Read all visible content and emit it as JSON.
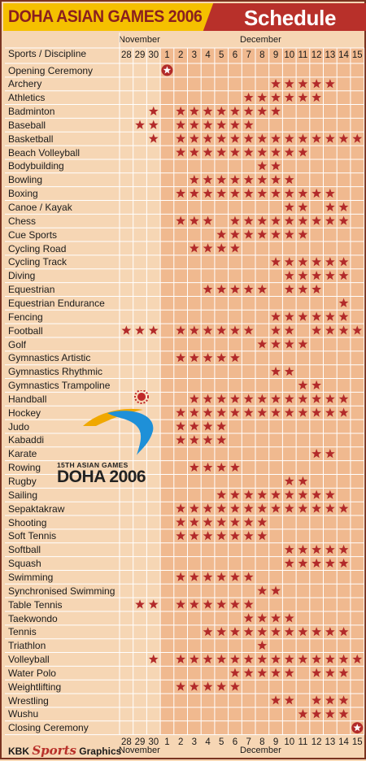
{
  "header": {
    "title_left": "DOHA ASIAN GAMES 2006",
    "title_right": "Schedule"
  },
  "table": {
    "corner_label": "Sports / Discipline",
    "month_november": "November",
    "month_december": "December",
    "days": [
      "28",
      "29",
      "30",
      "1",
      "2",
      "3",
      "4",
      "5",
      "6",
      "7",
      "8",
      "9",
      "10",
      "11",
      "12",
      "13",
      "14",
      "15"
    ],
    "rows": [
      {
        "sport": "Opening Ceremony",
        "events": [
          "1"
        ],
        "circled": [
          "1"
        ]
      },
      {
        "sport": "Archery",
        "events": [
          "9",
          "10",
          "11",
          "12",
          "13"
        ]
      },
      {
        "sport": "Athletics",
        "events": [
          "7",
          "8",
          "9",
          "10",
          "11",
          "12"
        ]
      },
      {
        "sport": "Badminton",
        "events": [
          "30",
          "2",
          "3",
          "4",
          "5",
          "6",
          "7",
          "8",
          "9"
        ]
      },
      {
        "sport": "Baseball",
        "events": [
          "29",
          "30",
          "2",
          "3",
          "4",
          "5",
          "6",
          "7"
        ]
      },
      {
        "sport": "Basketball",
        "events": [
          "30",
          "2",
          "3",
          "4",
          "5",
          "6",
          "7",
          "8",
          "9",
          "10",
          "11",
          "12",
          "13",
          "14",
          "15"
        ]
      },
      {
        "sport": "Beach Volleyball",
        "events": [
          "2",
          "3",
          "4",
          "5",
          "6",
          "7",
          "8",
          "9",
          "10",
          "11"
        ]
      },
      {
        "sport": "Bodybuilding",
        "events": [
          "8",
          "9"
        ]
      },
      {
        "sport": "Bowling",
        "events": [
          "3",
          "4",
          "5",
          "6",
          "7",
          "8",
          "9",
          "10"
        ]
      },
      {
        "sport": "Boxing",
        "events": [
          "2",
          "3",
          "4",
          "5",
          "6",
          "7",
          "8",
          "9",
          "10",
          "11",
          "12",
          "13"
        ]
      },
      {
        "sport": "Canoe / Kayak",
        "events": [
          "10",
          "11",
          "13",
          "14"
        ]
      },
      {
        "sport": "Chess",
        "events": [
          "2",
          "3",
          "4",
          "6",
          "7",
          "8",
          "9",
          "10",
          "11",
          "12",
          "13",
          "14"
        ]
      },
      {
        "sport": "Cue Sports",
        "events": [
          "5",
          "6",
          "7",
          "8",
          "9",
          "10",
          "11"
        ]
      },
      {
        "sport": "Cycling Road",
        "events": [
          "3",
          "4",
          "5",
          "6"
        ]
      },
      {
        "sport": "Cycling Track",
        "events": [
          "9",
          "10",
          "11",
          "12",
          "13",
          "14"
        ]
      },
      {
        "sport": "Diving",
        "events": [
          "10",
          "11",
          "12",
          "13",
          "14"
        ]
      },
      {
        "sport": "Equestrian",
        "events": [
          "4",
          "5",
          "6",
          "7",
          "8",
          "10",
          "11",
          "12"
        ]
      },
      {
        "sport": "Equestrian Endurance",
        "events": [
          "14"
        ]
      },
      {
        "sport": "Fencing",
        "events": [
          "9",
          "10",
          "11",
          "12",
          "13",
          "14"
        ]
      },
      {
        "sport": "Football",
        "events": [
          "28",
          "29",
          "30",
          "2",
          "3",
          "4",
          "5",
          "6",
          "7",
          "9",
          "10",
          "12",
          "13",
          "14",
          "15"
        ]
      },
      {
        "sport": "Golf",
        "events": [
          "8",
          "9",
          "10",
          "11"
        ]
      },
      {
        "sport": "Gymnastics Artistic",
        "events": [
          "2",
          "3",
          "4",
          "5",
          "6"
        ]
      },
      {
        "sport": "Gymnastics Rhythmic",
        "events": [
          "9",
          "10"
        ]
      },
      {
        "sport": "Gymnastics Trampoline",
        "events": [
          "11",
          "12"
        ]
      },
      {
        "sport": "Handball",
        "events": [
          "3",
          "4",
          "5",
          "6",
          "7",
          "8",
          "9",
          "10",
          "11",
          "12",
          "13",
          "14"
        ]
      },
      {
        "sport": "Hockey",
        "events": [
          "2",
          "3",
          "4",
          "5",
          "6",
          "7",
          "8",
          "9",
          "10",
          "11",
          "12",
          "13",
          "14"
        ]
      },
      {
        "sport": "Judo",
        "events": [
          "2",
          "3",
          "4",
          "5"
        ]
      },
      {
        "sport": "Kabaddi",
        "events": [
          "2",
          "3",
          "4",
          "5"
        ]
      },
      {
        "sport": "Karate",
        "events": [
          "12",
          "13"
        ]
      },
      {
        "sport": "Rowing",
        "events": [
          "3",
          "4",
          "5",
          "6"
        ]
      },
      {
        "sport": "Rugby",
        "events": [
          "10",
          "11"
        ]
      },
      {
        "sport": "Sailing",
        "events": [
          "5",
          "6",
          "7",
          "8",
          "9",
          "10",
          "11",
          "12",
          "13"
        ]
      },
      {
        "sport": "Sepaktakraw",
        "events": [
          "2",
          "3",
          "4",
          "5",
          "6",
          "7",
          "8",
          "9",
          "10",
          "11",
          "12",
          "13",
          "14"
        ]
      },
      {
        "sport": "Shooting",
        "events": [
          "2",
          "3",
          "4",
          "5",
          "6",
          "7",
          "8"
        ]
      },
      {
        "sport": "Soft Tennis",
        "events": [
          "2",
          "3",
          "4",
          "5",
          "6",
          "7",
          "8"
        ]
      },
      {
        "sport": "Softball",
        "events": [
          "10",
          "11",
          "12",
          "13",
          "14"
        ]
      },
      {
        "sport": "Squash",
        "events": [
          "10",
          "11",
          "12",
          "13",
          "14"
        ]
      },
      {
        "sport": "Swimming",
        "events": [
          "2",
          "3",
          "4",
          "5",
          "6",
          "7"
        ]
      },
      {
        "sport": "Synchronised Swimming",
        "events": [
          "8",
          "9"
        ]
      },
      {
        "sport": "Table Tennis",
        "events": [
          "29",
          "30",
          "2",
          "3",
          "4",
          "5",
          "6",
          "7"
        ]
      },
      {
        "sport": "Taekwondo",
        "events": [
          "7",
          "8",
          "9",
          "10"
        ]
      },
      {
        "sport": "Tennis",
        "events": [
          "4",
          "5",
          "6",
          "7",
          "8",
          "9",
          "10",
          "11",
          "12",
          "13",
          "14"
        ]
      },
      {
        "sport": "Triathlon",
        "events": [
          "8"
        ]
      },
      {
        "sport": "Volleyball",
        "events": [
          "30",
          "2",
          "3",
          "4",
          "5",
          "6",
          "7",
          "8",
          "9",
          "10",
          "11",
          "12",
          "13",
          "14",
          "15"
        ]
      },
      {
        "sport": "Water Polo",
        "events": [
          "6",
          "7",
          "8",
          "9",
          "10",
          "12",
          "13",
          "14"
        ]
      },
      {
        "sport": "Weightlifting",
        "events": [
          "2",
          "3",
          "4",
          "5",
          "6"
        ]
      },
      {
        "sport": "Wrestling",
        "events": [
          "9",
          "10",
          "12",
          "13",
          "14"
        ]
      },
      {
        "sport": "Wushu",
        "events": [
          "11",
          "12",
          "13",
          "14"
        ]
      },
      {
        "sport": "Closing Ceremony",
        "events": [
          "15"
        ],
        "circled": [
          "15"
        ]
      }
    ]
  },
  "logo": {
    "line1": "15TH ASIAN GAMES",
    "line2": "DOHA 2006"
  },
  "footer": {
    "credit_prefix": "KBK",
    "credit_script": "Sports",
    "credit_suffix": "Graphics",
    "days": [
      "28",
      "29",
      "30",
      "1",
      "2",
      "3",
      "4",
      "5",
      "6",
      "7",
      "8",
      "9",
      "10",
      "11",
      "12",
      "13",
      "14",
      "15"
    ],
    "month_november": "November",
    "month_december": "December"
  },
  "colors": {
    "background": "#f6d6b4",
    "december_columns": "#f0b98f",
    "header_yellow": "#f5c000",
    "header_red": "#b8302a",
    "star": "#b22a2a",
    "grid_line": "#ffffff"
  }
}
